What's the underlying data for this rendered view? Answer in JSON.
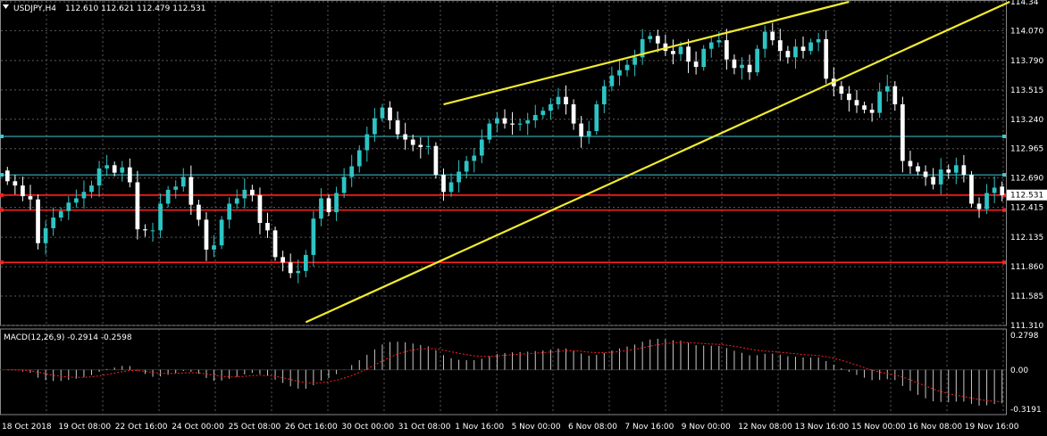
{
  "header": {
    "symbol": "USDJPY,H4",
    "ohlc": "112.610 112.621 112.479 112.531"
  },
  "macd": {
    "label": "MACD(12,26,9) -0.2914 -0.2598",
    "axis_labels": [
      "0.2798",
      "0.00",
      "-0.3191"
    ]
  },
  "colors": {
    "background": "#000000",
    "grid": "#5a5a5a",
    "bull": "#2ec4c4",
    "bear": "#ffffff",
    "trendline": "#f2ea2e",
    "support": "#ff2020",
    "level_cyan": "#3fc8d0",
    "signal": "#ff2020",
    "histogram": "#c8c8c8"
  },
  "chart_data": {
    "type": "candlestick",
    "symbol": "USDJPY",
    "timeframe": "H4",
    "ylim": [
      111.31,
      114.34
    ],
    "y_ticks": [
      114.34,
      114.07,
      113.79,
      113.515,
      113.24,
      112.965,
      112.69,
      112.415,
      112.135,
      111.86,
      111.585,
      111.31
    ],
    "y_tick_labels": [
      "114.34",
      "114.070",
      "113.790",
      "113.515",
      "113.240",
      "112.965",
      "112.690",
      "112.415",
      "112.135",
      "111.860",
      "111.585",
      "111.310"
    ],
    "x_tick_labels": [
      "18 Oct 2018",
      "19 Oct 08:00",
      "22 Oct 16:00",
      "24 Oct 00:00",
      "25 Oct 08:00",
      "26 Oct 16:00",
      "30 Oct 00:00",
      "31 Oct 08:00",
      "1 Nov 16:00",
      "5 Nov 00:00",
      "6 Nov 08:00",
      "7 Nov 16:00",
      "9 Nov 00:00",
      "12 Nov 08:00",
      "13 Nov 16:00",
      "15 Nov 00:00",
      "16 Nov 08:00",
      "19 Nov 16:00"
    ],
    "current_price": 112.531,
    "current_price_label": "112.531",
    "horizontal_levels": [
      {
        "price": 113.08,
        "color": "cyan"
      },
      {
        "price": 112.72,
        "color": "cyan"
      },
      {
        "price": 112.53,
        "color": "red"
      },
      {
        "price": 112.39,
        "color": "red"
      },
      {
        "price": 111.9,
        "color": "red"
      }
    ],
    "trendlines": [
      {
        "from": [
          57,
          113.38
        ],
        "to": [
          110,
          114.34
        ],
        "color": "yellow"
      },
      {
        "from": [
          39,
          111.34
        ],
        "to": [
          131,
          114.34
        ],
        "color": "yellow"
      }
    ],
    "close": [
      112.66,
      112.62,
      112.52,
      112.49,
      112.08,
      112.22,
      112.32,
      112.38,
      112.46,
      112.5,
      112.56,
      112.62,
      112.78,
      112.81,
      112.74,
      112.79,
      112.65,
      112.21,
      112.2,
      112.2,
      112.45,
      112.58,
      112.61,
      112.7,
      112.44,
      112.3,
      112.02,
      112.06,
      112.3,
      112.45,
      112.5,
      112.58,
      112.53,
      112.27,
      112.2,
      111.95,
      111.9,
      111.8,
      111.82,
      111.97,
      112.31,
      112.5,
      112.37,
      112.55,
      112.7,
      112.8,
      112.95,
      113.1,
      113.25,
      113.35,
      113.23,
      113.1,
      113.05,
      113.0,
      112.98,
      112.99,
      112.72,
      112.56,
      112.65,
      112.75,
      112.85,
      112.9,
      113.05,
      113.2,
      113.25,
      113.2,
      113.19,
      113.2,
      113.23,
      113.28,
      113.32,
      113.38,
      113.45,
      113.38,
      113.2,
      113.08,
      113.13,
      113.38,
      113.55,
      113.65,
      113.7,
      113.75,
      113.82,
      113.99,
      114.02,
      113.95,
      113.88,
      113.85,
      113.92,
      113.78,
      113.73,
      113.9,
      113.96,
      113.98,
      113.8,
      113.72,
      113.75,
      113.68,
      113.9,
      114.06,
      113.98,
      113.88,
      113.82,
      113.92,
      113.88,
      113.96,
      113.99,
      113.62,
      113.55,
      113.48,
      113.42,
      113.37,
      113.33,
      113.3,
      113.5,
      113.55,
      113.38,
      112.85,
      112.8,
      112.75,
      112.7,
      112.63,
      112.77,
      112.74,
      112.81,
      112.72,
      112.45,
      112.4,
      112.55,
      112.6,
      112.53
    ],
    "open": [
      112.76,
      112.66,
      112.62,
      112.52,
      112.49,
      112.08,
      112.22,
      112.32,
      112.38,
      112.46,
      112.5,
      112.56,
      112.62,
      112.78,
      112.81,
      112.74,
      112.79,
      112.65,
      112.21,
      112.2,
      112.2,
      112.45,
      112.58,
      112.61,
      112.7,
      112.44,
      112.3,
      112.02,
      112.06,
      112.3,
      112.45,
      112.5,
      112.58,
      112.53,
      112.27,
      112.2,
      111.95,
      111.9,
      111.8,
      111.82,
      111.97,
      112.31,
      112.5,
      112.37,
      112.55,
      112.7,
      112.8,
      112.95,
      113.1,
      113.25,
      113.35,
      113.23,
      113.1,
      113.05,
      113.0,
      112.98,
      112.99,
      112.72,
      112.56,
      112.65,
      112.75,
      112.85,
      112.9,
      113.05,
      113.2,
      113.25,
      113.2,
      113.19,
      113.2,
      113.23,
      113.28,
      113.32,
      113.38,
      113.45,
      113.38,
      113.2,
      113.08,
      113.13,
      113.38,
      113.55,
      113.65,
      113.7,
      113.75,
      113.82,
      113.99,
      114.02,
      113.95,
      113.88,
      113.85,
      113.92,
      113.78,
      113.73,
      113.9,
      113.96,
      113.98,
      113.8,
      113.72,
      113.75,
      113.68,
      113.9,
      114.06,
      113.98,
      113.88,
      113.82,
      113.92,
      113.88,
      113.96,
      113.99,
      113.62,
      113.55,
      113.48,
      113.42,
      113.37,
      113.33,
      113.3,
      113.5,
      113.55,
      113.38,
      112.85,
      112.8,
      112.75,
      112.7,
      112.63,
      112.77,
      112.74,
      112.81,
      112.72,
      112.45,
      112.4,
      112.55,
      112.61
    ],
    "macd_ylim": [
      -0.3191,
      0.2798
    ]
  }
}
